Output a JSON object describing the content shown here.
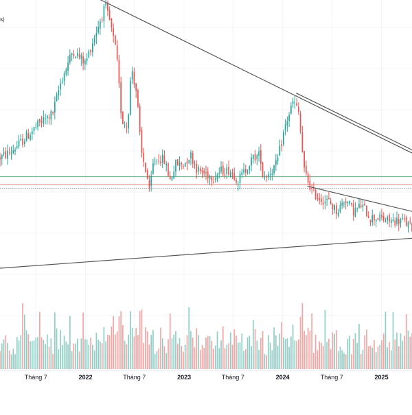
{
  "header": {
    "partial_label": "s)"
  },
  "colors": {
    "up": "#26a69a",
    "down": "#ef5350",
    "up_volume": "#8fcfc6",
    "down_volume": "#f3a6a4",
    "trendline": "#555555",
    "level_line_green": "#6aa874",
    "level_line_red": "#d88080",
    "level_line_dotted": "#8a9bb5",
    "grid": "#f0f3fa",
    "axis_text": "#131722"
  },
  "chart_data": {
    "type": "candlestick",
    "title": "",
    "xlabel": "",
    "ylabel": "",
    "grid": true,
    "x_tick_labels": [
      "Tháng 7",
      "2022",
      "Tháng 7",
      "2023",
      "Tháng 7",
      "2024",
      "Tháng 7",
      "2025"
    ],
    "x_ticks": [
      {
        "label": "Tháng 7",
        "date": "2021-07-01"
      },
      {
        "label": "2022",
        "date": "2022-01-01"
      },
      {
        "label": "Tháng 7",
        "date": "2022-07-01"
      },
      {
        "label": "2023",
        "date": "2023-01-01"
      },
      {
        "label": "Tháng 7",
        "date": "2023-07-01"
      },
      {
        "label": "2024",
        "date": "2024-01-01"
      },
      {
        "label": "Tháng 7",
        "date": "2024-07-01"
      },
      {
        "label": "2025",
        "date": "2025-01-01"
      }
    ],
    "x_range": [
      "2021-02-18",
      "2025-04-24"
    ],
    "price_range": [
      0,
      100
    ],
    "volume_range": [
      0,
      100
    ],
    "anchors": [
      [
        "2021-02-18",
        50
      ],
      [
        "2021-04-01",
        52
      ],
      [
        "2021-06-01",
        57
      ],
      [
        "2021-07-15",
        61
      ],
      [
        "2021-09-01",
        64
      ],
      [
        "2021-10-01",
        74
      ],
      [
        "2021-11-15",
        84
      ],
      [
        "2021-12-31",
        80
      ],
      [
        "2022-02-01",
        88
      ],
      [
        "2022-03-15",
        98
      ],
      [
        "2022-04-01",
        93
      ],
      [
        "2022-04-25",
        83
      ],
      [
        "2022-05-15",
        62
      ],
      [
        "2022-06-05",
        60
      ],
      [
        "2022-06-20",
        79
      ],
      [
        "2022-07-10",
        70
      ],
      [
        "2022-07-25",
        52
      ],
      [
        "2022-08-15",
        45
      ],
      [
        "2022-08-25",
        39
      ],
      [
        "2022-09-10",
        49
      ],
      [
        "2022-10-01",
        50
      ],
      [
        "2022-10-20",
        49
      ],
      [
        "2022-11-10",
        43
      ],
      [
        "2022-12-01",
        48
      ],
      [
        "2022-12-31",
        48
      ],
      [
        "2023-01-25",
        51
      ],
      [
        "2023-02-20",
        46
      ],
      [
        "2023-03-20",
        45
      ],
      [
        "2023-04-20",
        44
      ],
      [
        "2023-05-20",
        46
      ],
      [
        "2023-06-20",
        46
      ],
      [
        "2023-07-20",
        43
      ],
      [
        "2023-08-15",
        46
      ],
      [
        "2023-09-15",
        50
      ],
      [
        "2023-10-10",
        51
      ],
      [
        "2023-10-20",
        44
      ],
      [
        "2023-11-10",
        45
      ],
      [
        "2023-12-10",
        48
      ],
      [
        "2024-01-10",
        60
      ],
      [
        "2024-02-10",
        68
      ],
      [
        "2024-03-01",
        64
      ],
      [
        "2024-03-20",
        46
      ],
      [
        "2024-04-20",
        39
      ],
      [
        "2024-05-20",
        37
      ],
      [
        "2024-06-20",
        36
      ],
      [
        "2024-07-20",
        33
      ],
      [
        "2024-08-20",
        37
      ],
      [
        "2024-09-20",
        33
      ],
      [
        "2024-10-20",
        35
      ],
      [
        "2024-11-20",
        31
      ],
      [
        "2024-12-20",
        31
      ],
      [
        "2025-01-20",
        30
      ],
      [
        "2025-02-20",
        30
      ],
      [
        "2025-03-20",
        30
      ],
      [
        "2025-04-24",
        28
      ]
    ],
    "trendlines": [
      {
        "from": [
          "2022-02-15",
          100.5
        ],
        "to": [
          "2025-04-24",
          51.5
        ]
      },
      {
        "from": [
          "2024-02-20",
          70.5
        ],
        "to": [
          "2025-04-24",
          52.5
        ]
      },
      {
        "from": [
          "2021-02-18",
          15
        ],
        "to": [
          "2025-04-24",
          24.5
        ]
      },
      {
        "from": [
          "2024-04-01",
          41
        ],
        "to": [
          "2025-04-24",
          33
        ]
      }
    ],
    "horizontal_levels": [
      {
        "price": 44,
        "style": "solid",
        "color_key": "level_line_green"
      },
      {
        "price": 41.5,
        "style": "solid",
        "color_key": "level_line_red"
      },
      {
        "price": 40.3,
        "style": "dotted",
        "color_key": "level_line_dotted"
      }
    ]
  }
}
